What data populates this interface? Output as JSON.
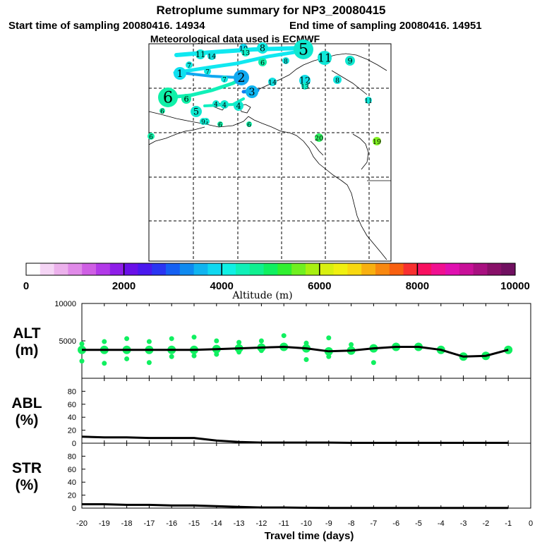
{
  "header": {
    "title": "Retroplume summary for NP3_20080415",
    "start_label": "Start time of sampling 20080416. 14934",
    "end_label": "End time of sampling 20080416. 14951",
    "met_label": "Meteorological data used is ECMWF"
  },
  "colorbar": {
    "title": "Altitude (m)",
    "ticks": [
      "0",
      "2000",
      "4000",
      "6000",
      "8000",
      "10000"
    ],
    "min": 0,
    "max": 10000,
    "colors": [
      "#ffffff",
      "#f5d5f5",
      "#ecb1ec",
      "#e08ae8",
      "#cf5fe4",
      "#b23ae8",
      "#8f1ee8",
      "#6a10e8",
      "#4a18ee",
      "#2a35f2",
      "#1560f2",
      "#0f8af0",
      "#10b4f0",
      "#10d8f0",
      "#10f0e4",
      "#10f0b8",
      "#10f090",
      "#10f060",
      "#30f030",
      "#70f020",
      "#a8f010",
      "#d8f010",
      "#f0f010",
      "#f8d810",
      "#f8b010",
      "#f88810",
      "#f86010",
      "#f83030",
      "#f81060",
      "#f01090",
      "#e010b0",
      "#c81098",
      "#a81080",
      "#881068",
      "#701060"
    ]
  },
  "map": {
    "markers": [
      {
        "label": "1",
        "c": "#10e0f0"
      },
      {
        "label": "2",
        "c": "#10a8f0"
      },
      {
        "label": "3",
        "c": "#10b4f0"
      },
      {
        "label": "4",
        "c": "#10e8d0"
      },
      {
        "label": "5",
        "c": "#10e8d0"
      },
      {
        "label": "6",
        "c": "#10f0a8"
      },
      {
        "label": "7",
        "c": "#10e8e0"
      },
      {
        "label": "8",
        "c": "#10e8e0"
      },
      {
        "label": "9",
        "c": "#10e8d0"
      },
      {
        "label": "10",
        "c": "#10d8f0"
      },
      {
        "label": "11",
        "c": "#10e8d8"
      },
      {
        "label": "12",
        "c": "#10e0e8"
      },
      {
        "label": "13",
        "c": "#10f0c8"
      },
      {
        "label": "14",
        "c": "#10e0e0"
      },
      {
        "label": "19",
        "c": "#80f020"
      },
      {
        "label": "20",
        "c": "#30f060"
      }
    ]
  },
  "chart_data": [
    {
      "type": "scatter",
      "panel": "ALT",
      "ylabel": "ALT\n(m)",
      "ylabel_lines": [
        "ALT",
        "(m)"
      ],
      "ylim": [
        0,
        10000
      ],
      "yticks": [
        5000,
        10000
      ],
      "x": [
        -20,
        -19,
        -18,
        -17,
        -16,
        -15,
        -14,
        -13,
        -12,
        -11,
        -10,
        -9,
        -8,
        -7,
        -6,
        -5,
        -4,
        -3,
        -2,
        -1
      ],
      "mean_altitude": [
        3800,
        3800,
        3800,
        3800,
        3800,
        3800,
        3900,
        4000,
        4100,
        4200,
        4000,
        3600,
        3700,
        4000,
        4200,
        4200,
        3800,
        2900,
        3000,
        3800
      ],
      "spread_points": [
        {
          "x": -20,
          "y": 4600
        },
        {
          "x": -20,
          "y": 2300
        },
        {
          "x": -19,
          "y": 4900
        },
        {
          "x": -19,
          "y": 2000
        },
        {
          "x": -18,
          "y": 5300
        },
        {
          "x": -18,
          "y": 2600
        },
        {
          "x": -17,
          "y": 4900
        },
        {
          "x": -17,
          "y": 2100
        },
        {
          "x": -16,
          "y": 5300
        },
        {
          "x": -16,
          "y": 2900
        },
        {
          "x": -15,
          "y": 5500
        },
        {
          "x": -15,
          "y": 3000
        },
        {
          "x": -14,
          "y": 5000
        },
        {
          "x": -14,
          "y": 3200
        },
        {
          "x": -13,
          "y": 4800
        },
        {
          "x": -13,
          "y": 3500
        },
        {
          "x": -12,
          "y": 5000
        },
        {
          "x": -12,
          "y": 3700
        },
        {
          "x": -11,
          "y": 5700
        },
        {
          "x": -11,
          "y": 4300
        },
        {
          "x": -10,
          "y": 4700
        },
        {
          "x": -10,
          "y": 2500
        },
        {
          "x": -9,
          "y": 5400
        },
        {
          "x": -9,
          "y": 2900
        },
        {
          "x": -8,
          "y": 4500
        },
        {
          "x": -8,
          "y": 3500
        },
        {
          "x": -7,
          "y": 4100
        },
        {
          "x": -7,
          "y": 2100
        },
        {
          "x": -6,
          "y": 4200
        },
        {
          "x": -5,
          "y": 4400
        },
        {
          "x": -4,
          "y": 3900
        },
        {
          "x": -3,
          "y": 3000
        },
        {
          "x": -2,
          "y": 3100
        },
        {
          "x": -1,
          "y": 3800
        }
      ]
    },
    {
      "type": "line",
      "panel": "ABL",
      "ylabel": "ABL\n(%)",
      "ylabel_lines": [
        "ABL",
        "(%)"
      ],
      "ylim": [
        0,
        100
      ],
      "yticks": [
        0,
        20,
        40,
        60,
        80
      ],
      "x": [
        -20,
        -19,
        -18,
        -17,
        -16,
        -15,
        -14,
        -13,
        -12,
        -11,
        -10,
        -9,
        -8,
        -7,
        -6,
        -5,
        -4,
        -3,
        -2,
        -1
      ],
      "values": [
        10,
        9,
        9,
        8,
        8,
        8,
        4,
        2,
        1,
        1,
        1,
        1,
        0.5,
        0.5,
        0.5,
        0.5,
        0.5,
        0.5,
        0.5,
        0.5
      ]
    },
    {
      "type": "line",
      "panel": "STR",
      "ylabel": "STR\n(%)",
      "ylabel_lines": [
        "STR",
        "(%)"
      ],
      "ylim": [
        0,
        100
      ],
      "yticks": [
        0,
        20,
        40,
        60,
        80
      ],
      "x": [
        -20,
        -19,
        -18,
        -17,
        -16,
        -15,
        -14,
        -13,
        -12,
        -11,
        -10,
        -9,
        -8,
        -7,
        -6,
        -5,
        -4,
        -3,
        -2,
        -1
      ],
      "values": [
        6,
        6,
        5,
        5,
        4,
        4,
        3,
        2,
        1,
        1,
        0.5,
        0.2,
        0.2,
        0.2,
        0.2,
        0.2,
        0.2,
        0.2,
        0.2,
        0.2
      ]
    }
  ],
  "xaxis": {
    "xlabel": "Travel time (days)",
    "ticks": [
      "-20",
      "-19",
      "-18",
      "-17",
      "-16",
      "-15",
      "-14",
      "-13",
      "-12",
      "-11",
      "-10",
      "-9",
      "-8",
      "-7",
      "-6",
      "-5",
      "-4",
      "-3",
      "-2",
      "-1",
      "0"
    ]
  }
}
